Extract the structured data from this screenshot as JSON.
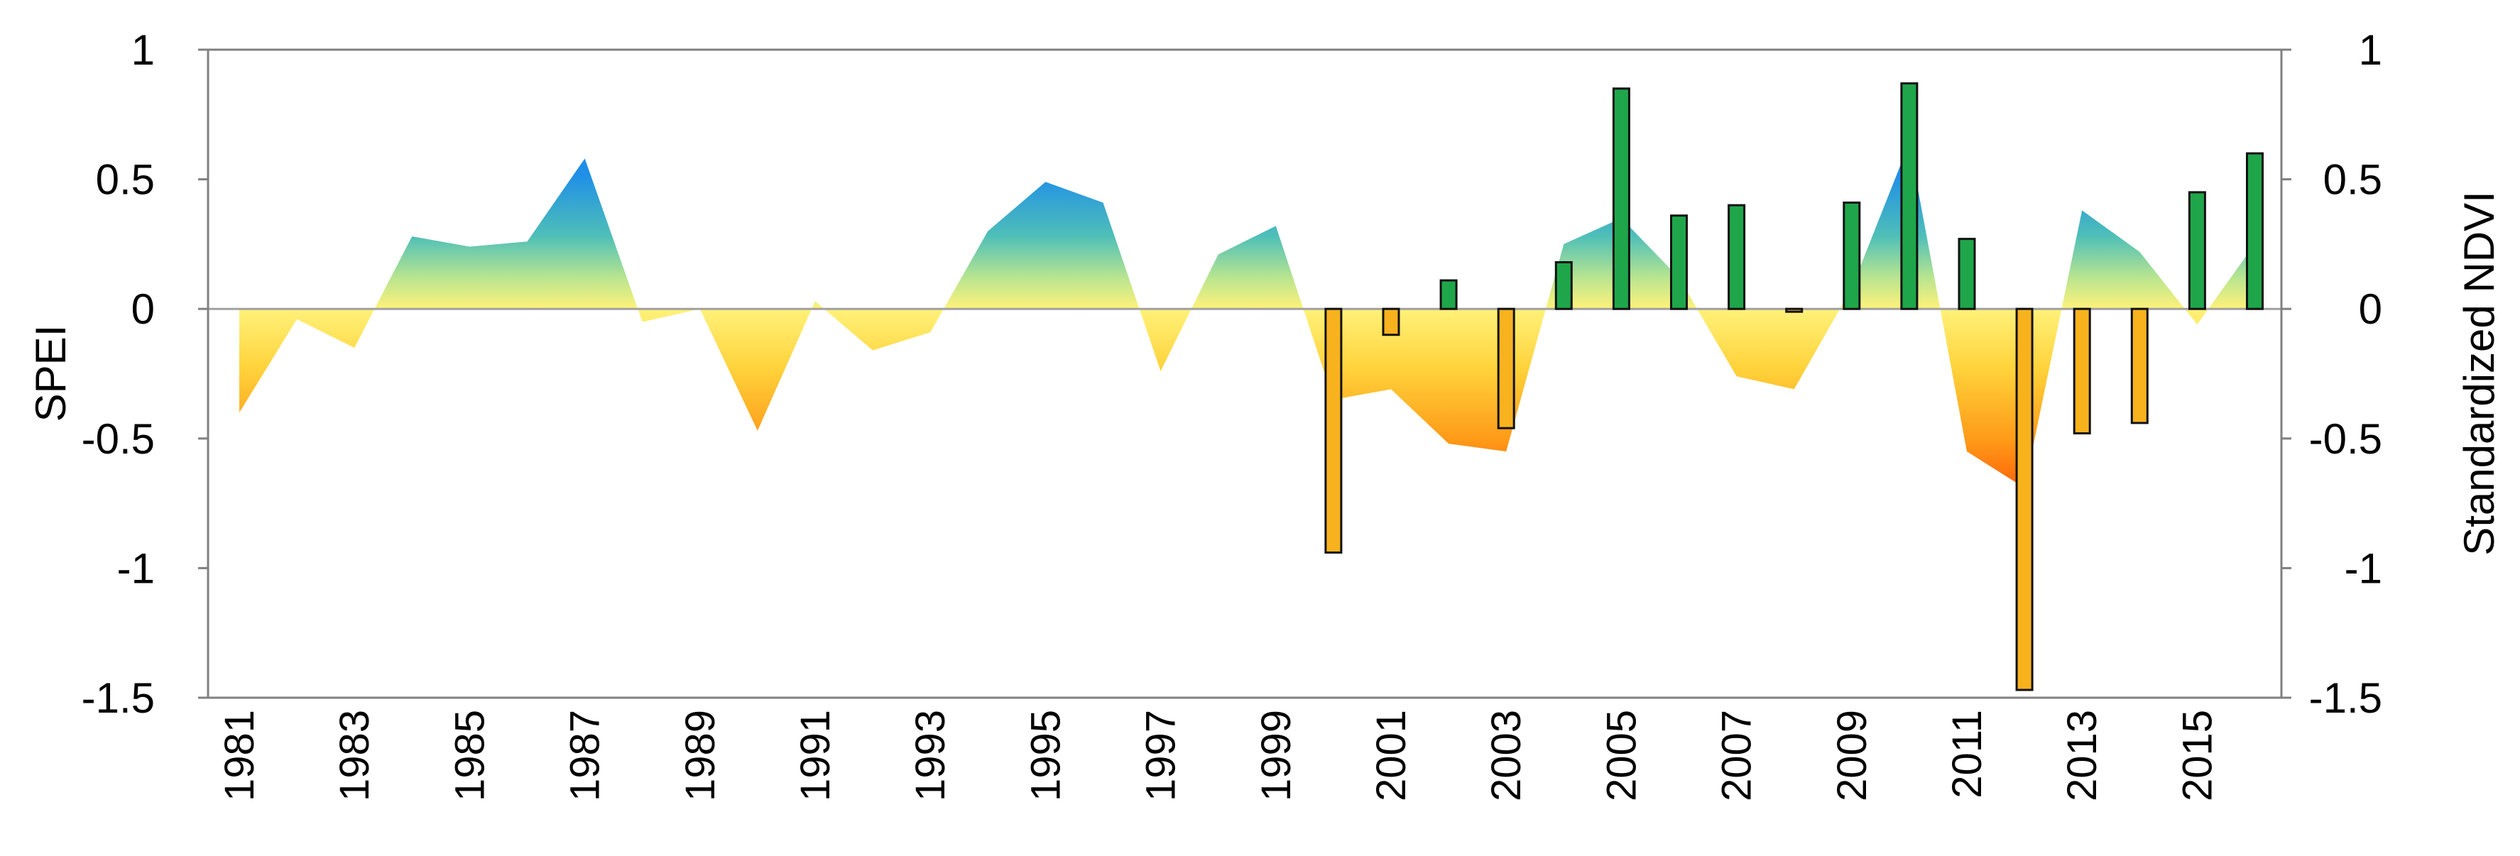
{
  "chart_data": {
    "type": "area",
    "y_left_label": "SPEI",
    "y_right_label": "Standardized NDVI",
    "ylim_left": [
      -1.5,
      1
    ],
    "ylim_right": [
      -1.5,
      1
    ],
    "y_ticks_left": [
      "1",
      "0.5",
      "0",
      "-0.5",
      "-1",
      "-1.5"
    ],
    "y_ticks_right": [
      "1",
      "0.5",
      "0",
      "-0.5",
      "-1",
      "-1.5"
    ],
    "x_tick_labels": [
      "1981",
      "1983",
      "1985",
      "1987",
      "1989",
      "1991",
      "1993",
      "1995",
      "1997",
      "1999",
      "2001",
      "2003",
      "2005",
      "2007",
      "2009",
      "2011",
      "2013",
      "2015"
    ],
    "grid": false,
    "series": [
      {
        "type": "area",
        "x": [
          1981,
          1982,
          1983,
          1984,
          1985,
          1986,
          1987,
          1988,
          1989,
          1990,
          1991,
          1992,
          1993,
          1994,
          1995,
          1996,
          1997,
          1998,
          1999,
          2000,
          2001,
          2002,
          2003,
          2004,
          2005,
          2006,
          2007,
          2008,
          2009,
          2010,
          2011,
          2012,
          2013,
          2014,
          2015,
          2016
        ],
        "values": [
          -0.4,
          -0.04,
          -0.15,
          0.28,
          0.24,
          0.26,
          0.58,
          -0.05,
          0.0,
          -0.47,
          0.03,
          -0.16,
          -0.09,
          0.3,
          0.49,
          0.41,
          -0.24,
          0.21,
          0.32,
          -0.35,
          -0.31,
          -0.52,
          -0.55,
          0.25,
          0.35,
          0.12,
          -0.26,
          -0.31,
          0.08,
          0.64,
          -0.55,
          -0.69,
          0.38,
          0.22,
          -0.06,
          0.25
        ]
      },
      {
        "type": "bar",
        "x": [
          2000,
          2001,
          2002,
          2003,
          2004,
          2005,
          2006,
          2007,
          2008,
          2009,
          2010,
          2011,
          2012,
          2013,
          2014,
          2015,
          2016
        ],
        "values": [
          -0.94,
          -0.1,
          0.11,
          -0.46,
          0.18,
          0.85,
          0.36,
          0.4,
          -0.01,
          0.41,
          0.87,
          0.27,
          -1.47,
          -0.48,
          -0.44,
          0.45,
          0.6
        ]
      }
    ],
    "colors": {
      "spei_positive": "#1e88e5",
      "spei_neutral": "#fff27a",
      "spei_negative": "#ff5a00",
      "ndvi_positive_bar": "#1fa64a",
      "ndvi_negative_bar": "#f7b21e"
    }
  }
}
